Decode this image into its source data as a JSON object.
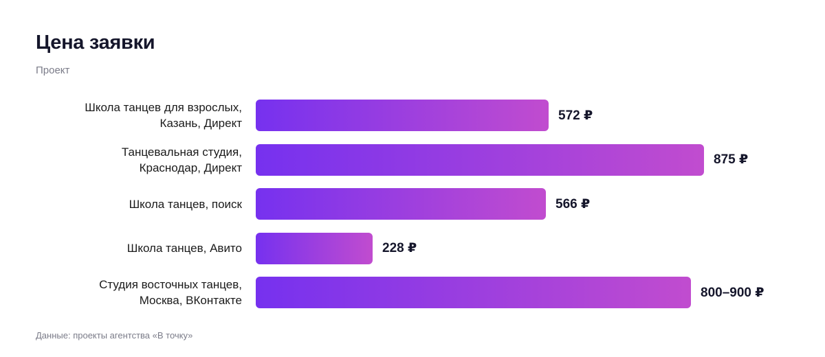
{
  "title": "Цена заявки",
  "subtitle": "Проект",
  "source": "Данные: проекты агентства «В точку»",
  "colors": {
    "bar_start": "#7631ef",
    "bar_end": "#c14ccf",
    "text": "#15162b",
    "muted": "#7a7b88"
  },
  "chart_data": {
    "type": "bar",
    "orientation": "horizontal",
    "title": "Цена заявки",
    "subtitle": "Проект",
    "categories": [
      "Школа танцев для взрослых,\nКазань, Директ",
      "Танцевальная студия,\nКраснодар, Директ",
      "Школа танцев, поиск",
      "Школа танцев, Авито",
      "Студия восточных танцев,\nМосква, ВКонтакте"
    ],
    "values": [
      572,
      875,
      566,
      228,
      850
    ],
    "value_labels": [
      "572 ₽",
      "875 ₽",
      "566 ₽",
      "228 ₽",
      "800–900 ₽"
    ],
    "unit": "₽",
    "xlim": [
      0,
      875
    ],
    "grid": false,
    "legend": "none"
  }
}
